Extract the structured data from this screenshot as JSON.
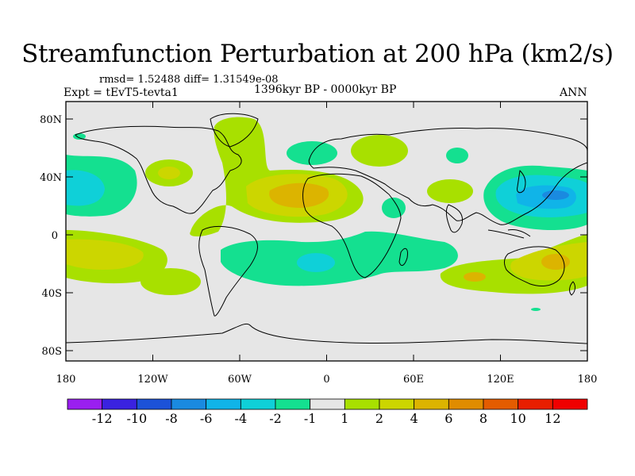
{
  "title": "Streamfunction Perturbation at 200 hPa (km2/s)",
  "stats_text": "rmsd= 1.52488 diff= 1.31549e-08",
  "experiment_text": "Expt = tEvT5-tevta1",
  "period_text": "1396kyr BP - 0000kyr BP",
  "season": "ANN",
  "lat_labels": [
    "80N",
    "40N",
    "0",
    "40S",
    "80S"
  ],
  "lon_labels": [
    "180",
    "120W",
    "60W",
    "0",
    "60E",
    "120E",
    "180"
  ],
  "colorbar": {
    "labels": [
      "-12",
      "-10",
      "-8",
      "-6",
      "-4",
      "-2",
      "-1",
      "1",
      "2",
      "4",
      "6",
      "8",
      "10",
      "12"
    ],
    "colors": [
      "#9a1ff0",
      "#3a22e0",
      "#1c52d8",
      "#1a8ae0",
      "#10b4e8",
      "#0fd0d8",
      "#14e090",
      "#e6e6e6",
      "#a8e000",
      "#ccd600",
      "#dcb400",
      "#e08c00",
      "#e45c00",
      "#e81e00",
      "#f00000"
    ]
  },
  "colors": {
    "neutral": "#e6e6e6",
    "pos1": "#a8e000",
    "pos2": "#ccd600",
    "pos3": "#dcb400",
    "pos4": "#e08c00",
    "neg1": "#14e090",
    "neg2": "#0fd0d8",
    "neg3": "#10b4e8",
    "neg4": "#1a8ae0"
  }
}
